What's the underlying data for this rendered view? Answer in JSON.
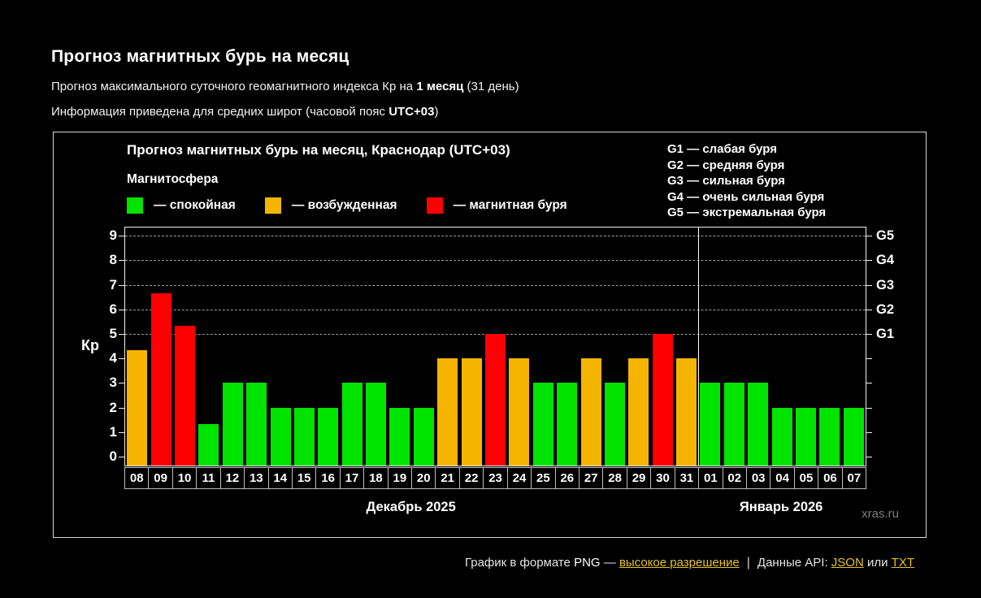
{
  "header": {
    "title": "Прогноз магнитных бурь на месяц",
    "subtitle_prefix": "Прогноз максимального суточного геомагнитного индекса Кр на ",
    "subtitle_bold": "1 месяц",
    "subtitle_suffix": " (31 день)",
    "info_prefix": "Информация приведена для средних широт (часовой пояс ",
    "info_bold": "UTC+03",
    "info_suffix": ")"
  },
  "chart_data": {
    "type": "bar",
    "title": "Прогноз магнитных бурь на месяц, Краснодар (UTC+03)",
    "legend_title": "Магнитосфера",
    "legend": [
      {
        "label": "— спокойная",
        "status": "quiet",
        "color": "#00e400"
      },
      {
        "label": "— возбужденная",
        "status": "excited",
        "color": "#f5b400"
      },
      {
        "label": "— магнитная буря",
        "status": "storm",
        "color": "#ff0000"
      }
    ],
    "storm_scale_legend": [
      "G1 — слабая буря",
      "G2 — средняя буря",
      "G3 — сильная буря",
      "G4 — очень сильная буря",
      "G5 — экстремальная буря"
    ],
    "ylabel": "Кр",
    "ylim": [
      0,
      9
    ],
    "yticks": [
      0,
      1,
      2,
      3,
      4,
      5,
      6,
      7,
      8,
      9
    ],
    "right_axis_labels": [
      {
        "label": "G1",
        "kp": 5
      },
      {
        "label": "G2",
        "kp": 6
      },
      {
        "label": "G3",
        "kp": 7
      },
      {
        "label": "G4",
        "kp": 8
      },
      {
        "label": "G5",
        "kp": 9
      }
    ],
    "gridlines_at": [
      5,
      6,
      7,
      8,
      9
    ],
    "categories": [
      "08",
      "09",
      "10",
      "11",
      "12",
      "13",
      "14",
      "15",
      "16",
      "17",
      "18",
      "19",
      "20",
      "21",
      "22",
      "23",
      "24",
      "25",
      "26",
      "27",
      "28",
      "29",
      "30",
      "31",
      "01",
      "02",
      "03",
      "04",
      "05",
      "06",
      "07"
    ],
    "values": [
      4.33,
      6.67,
      5.33,
      1.33,
      3,
      3,
      2,
      2,
      2,
      3,
      3,
      2,
      2,
      4,
      4,
      5,
      4,
      3,
      3,
      4,
      3,
      4,
      5,
      4,
      3,
      3,
      3,
      2,
      2,
      2,
      2
    ],
    "statuses": [
      "excited",
      "storm",
      "storm",
      "quiet",
      "quiet",
      "quiet",
      "quiet",
      "quiet",
      "quiet",
      "quiet",
      "quiet",
      "quiet",
      "quiet",
      "excited",
      "excited",
      "storm",
      "excited",
      "quiet",
      "quiet",
      "excited",
      "quiet",
      "excited",
      "storm",
      "excited",
      "quiet",
      "quiet",
      "quiet",
      "quiet",
      "quiet",
      "quiet",
      "quiet"
    ],
    "month_groups": [
      {
        "label": "Декабрь 2025",
        "count": 24
      },
      {
        "label": "Январь 2026",
        "count": 7
      }
    ],
    "watermark": "xras.ru"
  },
  "footer": {
    "text_prefix": "График в формате ",
    "png": "PNG",
    "dash": " — ",
    "link_hires": "высокое разрешение",
    "separator": "|",
    "api_prefix": "Данные API: ",
    "link_json": "JSON",
    "or_text": " или ",
    "link_txt": "TXT",
    "link_color": "#e5c12b"
  }
}
